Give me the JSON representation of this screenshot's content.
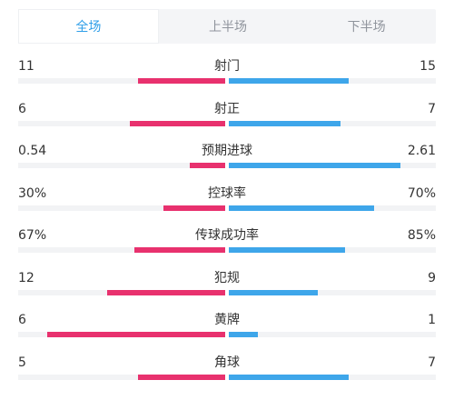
{
  "tabs": [
    {
      "label": "全场",
      "active": true
    },
    {
      "label": "上半场",
      "active": false
    },
    {
      "label": "下半场",
      "active": false
    }
  ],
  "colors": {
    "home": "#e8316e",
    "away": "#3ea6ea",
    "tab_active": "#2e9ee8"
  },
  "stats": [
    {
      "label": "射门",
      "home": "11",
      "away": "15",
      "home_ratio": 0.42,
      "away_ratio": 0.58
    },
    {
      "label": "射正",
      "home": "6",
      "away": "7",
      "home_ratio": 0.46,
      "away_ratio": 0.54
    },
    {
      "label": "预期进球",
      "home": "0.54",
      "away": "2.61",
      "home_ratio": 0.17,
      "away_ratio": 0.83
    },
    {
      "label": "控球率",
      "home": "30%",
      "away": "70%",
      "home_ratio": 0.3,
      "away_ratio": 0.7
    },
    {
      "label": "传球成功率",
      "home": "67%",
      "away": "85%",
      "home_ratio": 0.44,
      "away_ratio": 0.56
    },
    {
      "label": "犯规",
      "home": "12",
      "away": "9",
      "home_ratio": 0.57,
      "away_ratio": 0.43
    },
    {
      "label": "黄牌",
      "home": "6",
      "away": "1",
      "home_ratio": 0.86,
      "away_ratio": 0.14
    },
    {
      "label": "角球",
      "home": "5",
      "away": "7",
      "home_ratio": 0.42,
      "away_ratio": 0.58
    }
  ]
}
